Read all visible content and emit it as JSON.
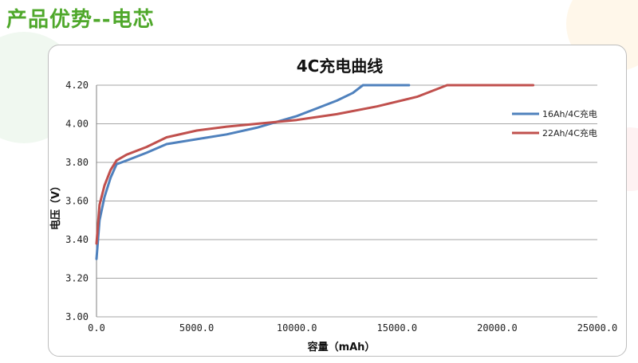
{
  "page": {
    "title": "产品优势--电芯"
  },
  "colors": {
    "title_green": "#4fa82b",
    "series_blue": "#4f81bd",
    "series_red": "#c0504d",
    "grid": "#a6a6a6"
  },
  "chart_data": {
    "type": "line",
    "title": "4C充电曲线",
    "xlabel": "容量（mAh）",
    "ylabel": "电压（V）",
    "xlim": [
      0,
      25000
    ],
    "ylim": [
      3.0,
      4.2
    ],
    "x_ticks": [
      "0.0",
      "5000.0",
      "10000.0",
      "15000.0",
      "20000.0",
      "25000.0"
    ],
    "y_ticks": [
      "3.00",
      "3.20",
      "3.40",
      "3.60",
      "3.80",
      "4.00",
      "4.20"
    ],
    "x_tick_values": [
      0,
      5000,
      10000,
      15000,
      20000,
      25000
    ],
    "y_tick_values": [
      3.0,
      3.2,
      3.4,
      3.6,
      3.8,
      4.0,
      4.2
    ],
    "grid": "horizontal",
    "legend_position": "right",
    "series": [
      {
        "name": "16Ah/4C充电",
        "color": "#4f81bd",
        "points": [
          [
            0,
            3.3
          ],
          [
            150,
            3.5
          ],
          [
            400,
            3.62
          ],
          [
            700,
            3.72
          ],
          [
            1000,
            3.79
          ],
          [
            1500,
            3.81
          ],
          [
            2500,
            3.85
          ],
          [
            3500,
            3.895
          ],
          [
            5000,
            3.92
          ],
          [
            6500,
            3.945
          ],
          [
            8000,
            3.98
          ],
          [
            9000,
            4.01
          ],
          [
            10000,
            4.04
          ],
          [
            11000,
            4.08
          ],
          [
            12000,
            4.12
          ],
          [
            12800,
            4.16
          ],
          [
            13300,
            4.2
          ],
          [
            15600,
            4.2
          ]
        ]
      },
      {
        "name": "22Ah/4C充电",
        "color": "#c0504d",
        "points": [
          [
            0,
            3.38
          ],
          [
            150,
            3.58
          ],
          [
            400,
            3.68
          ],
          [
            700,
            3.76
          ],
          [
            1000,
            3.81
          ],
          [
            1500,
            3.84
          ],
          [
            2500,
            3.88
          ],
          [
            3500,
            3.93
          ],
          [
            5000,
            3.965
          ],
          [
            6500,
            3.985
          ],
          [
            8000,
            4.0
          ],
          [
            9000,
            4.01
          ],
          [
            10000,
            4.02
          ],
          [
            12000,
            4.05
          ],
          [
            14000,
            4.09
          ],
          [
            16000,
            4.14
          ],
          [
            17500,
            4.2
          ],
          [
            21800,
            4.2
          ]
        ]
      }
    ]
  }
}
